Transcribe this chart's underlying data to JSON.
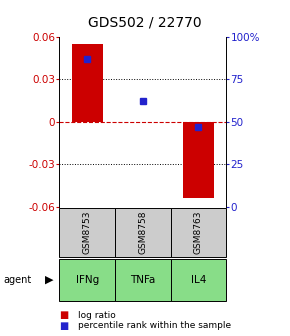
{
  "title": "GDS502 / 22770",
  "samples": [
    "GSM8753",
    "GSM8758",
    "GSM8763"
  ],
  "agents": [
    "IFNg",
    "TNFa",
    "IL4"
  ],
  "log_ratios": [
    0.055,
    0.0,
    -0.054
  ],
  "percentile_ranks": [
    87.0,
    62.0,
    47.0
  ],
  "ylim_left": [
    -0.06,
    0.06
  ],
  "ylim_right": [
    0,
    100
  ],
  "yticks_left": [
    -0.06,
    -0.03,
    0.0,
    0.03,
    0.06
  ],
  "yticks_right": [
    0,
    25,
    50,
    75,
    100
  ],
  "bar_color": "#cc0000",
  "blue_color": "#2222cc",
  "agent_bg_color": "#88dd88",
  "sample_bg_color": "#cccccc",
  "bar_width": 0.55,
  "legend_log_ratio": "log ratio",
  "legend_percentile": "percentile rank within the sample",
  "zero_line_color": "#cc0000",
  "grid_color": "#000000",
  "title_fontsize": 10,
  "tick_fontsize": 7.5,
  "label_fontsize": 7.5
}
